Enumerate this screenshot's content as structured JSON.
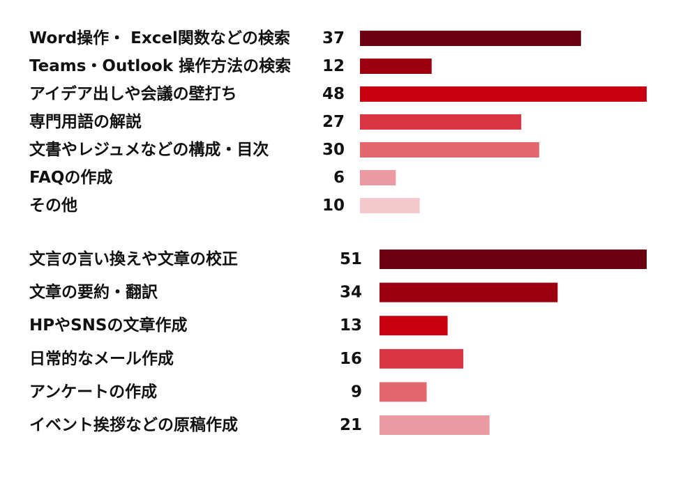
{
  "chart_data": [
    {
      "type": "bar",
      "orientation": "horizontal",
      "categories": [
        "Word操作・ Excel関数などの検索",
        "Teams・Outlook 操作方法の検索",
        "アイデア出しや会議の壁打ち",
        "専門用語の解説",
        "文書やレジュメなどの構成・目次",
        "FAQの作成",
        "その他"
      ],
      "values": [
        37,
        12,
        48,
        27,
        30,
        6,
        10
      ],
      "colors": [
        "#6b0011",
        "#9c0010",
        "#c8000f",
        "#d93545",
        "#e3676f",
        "#eb9aa1",
        "#f3c9cd"
      ],
      "xlim": [
        0,
        48
      ],
      "grid": false,
      "legend": "none"
    },
    {
      "type": "bar",
      "orientation": "horizontal",
      "categories": [
        "文言の言い換えや文章の校正",
        "文章の要約・翻訳",
        "HPやSNSの文章作成",
        "日常的なメール作成",
        "アンケートの作成",
        "イベント挨拶などの原稿作成"
      ],
      "values": [
        51,
        34,
        13,
        16,
        9,
        21
      ],
      "colors": [
        "#6b0011",
        "#9c0010",
        "#c8000f",
        "#d93545",
        "#e3676f",
        "#eb9aa1"
      ],
      "xlim": [
        0,
        51
      ],
      "grid": false,
      "legend": "none"
    }
  ]
}
